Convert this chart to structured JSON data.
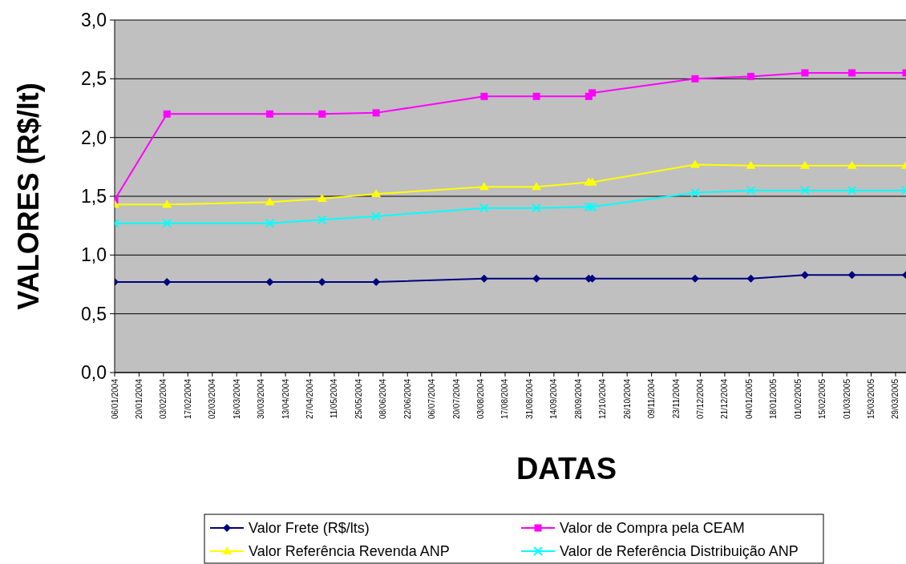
{
  "chart_data": {
    "type": "line",
    "xlabel": "DATAS",
    "ylabel": "VALORES (R$/lt)",
    "xlim": [
      "2004-01-06",
      "2005-04-04"
    ],
    "xticks": [
      {
        "value": "2004-01-06",
        "label": "06/01/2004"
      },
      {
        "value": "2004-01-20",
        "label": "20/01/2004"
      },
      {
        "value": "2004-02-03",
        "label": "03/02/2004"
      },
      {
        "value": "2004-02-17",
        "label": "17/02/2004"
      },
      {
        "value": "2004-03-02",
        "label": "02/03/2004"
      },
      {
        "value": "2004-03-16",
        "label": "16/03/2004"
      },
      {
        "value": "2004-03-30",
        "label": "30/03/2004"
      },
      {
        "value": "2004-04-13",
        "label": "13/04/2004"
      },
      {
        "value": "2004-04-27",
        "label": "27/04/2004"
      },
      {
        "value": "2004-05-11",
        "label": "11/05/2004"
      },
      {
        "value": "2004-05-25",
        "label": "25/05/2004"
      },
      {
        "value": "2004-06-08",
        "label": "08/06/2004"
      },
      {
        "value": "2004-06-22",
        "label": "22/06/2004"
      },
      {
        "value": "2004-07-06",
        "label": "06/07/2004"
      },
      {
        "value": "2004-07-20",
        "label": "20/07/2004"
      },
      {
        "value": "2004-08-03",
        "label": "03/08/2004"
      },
      {
        "value": "2004-08-17",
        "label": "17/08/2004"
      },
      {
        "value": "2004-08-31",
        "label": "31/08/2004"
      },
      {
        "value": "2004-09-14",
        "label": "14/09/2004"
      },
      {
        "value": "2004-09-28",
        "label": "28/09/2004"
      },
      {
        "value": "2004-10-12",
        "label": "12/10/2004"
      },
      {
        "value": "2004-10-26",
        "label": "26/10/2004"
      },
      {
        "value": "2004-11-09",
        "label": "09/11/2004"
      },
      {
        "value": "2004-11-23",
        "label": "23/11/2004"
      },
      {
        "value": "2004-12-07",
        "label": "07/12/2004"
      },
      {
        "value": "2004-12-21",
        "label": "21/12/2004"
      },
      {
        "value": "2005-01-04",
        "label": "04/01/2005"
      },
      {
        "value": "2005-01-18",
        "label": "18/01/2005"
      },
      {
        "value": "2005-02-01",
        "label": "01/02/2005"
      },
      {
        "value": "2005-02-15",
        "label": "15/02/2005"
      },
      {
        "value": "2005-03-01",
        "label": "01/03/2005"
      },
      {
        "value": "2005-03-15",
        "label": "15/03/2005"
      },
      {
        "value": "2005-03-29",
        "label": "29/03/2005"
      }
    ],
    "ylim": [
      0,
      3
    ],
    "yticks": [
      {
        "value": 0,
        "label": "0,0"
      },
      {
        "value": 0.5,
        "label": "0,5"
      },
      {
        "value": 1,
        "label": "1,0"
      },
      {
        "value": 1.5,
        "label": "1,5"
      },
      {
        "value": 2,
        "label": "2,0"
      },
      {
        "value": 2.5,
        "label": "2,5"
      },
      {
        "value": 3,
        "label": "3,0"
      }
    ],
    "grid": "y",
    "legend": "bottom",
    "x": [
      "2004-01-06",
      "2004-02-05",
      "2004-04-04",
      "2004-05-04",
      "2004-06-04",
      "2004-08-05",
      "2004-09-04",
      "2004-10-04",
      "2004-10-06",
      "2004-12-04",
      "2005-01-05",
      "2005-02-05",
      "2005-03-04",
      "2005-04-04"
    ],
    "series": [
      {
        "name": "Valor Frete (R$/lts)",
        "color": "#000080",
        "marker": "diamond",
        "values": [
          0.77,
          0.77,
          0.77,
          0.77,
          0.77,
          0.8,
          0.8,
          0.8,
          0.8,
          0.8,
          0.8,
          0.83,
          0.83,
          0.83
        ]
      },
      {
        "name": "Valor de Compra pela CEAM",
        "color": "#ff00ff",
        "marker": "square",
        "values": [
          1.47,
          2.2,
          2.2,
          2.2,
          2.21,
          2.35,
          2.35,
          2.35,
          2.38,
          2.5,
          2.52,
          2.55,
          2.55,
          2.55
        ]
      },
      {
        "name": "Valor Referência Revenda ANP",
        "color": "#ffff00",
        "marker": "triangle",
        "values": [
          1.43,
          1.43,
          1.45,
          1.48,
          1.52,
          1.58,
          1.58,
          1.62,
          1.62,
          1.77,
          1.76,
          1.76,
          1.76,
          1.76
        ]
      },
      {
        "name": "Valor de Referência Distribuição ANP",
        "color": "#00ffff",
        "marker": "cross",
        "values": [
          1.27,
          1.27,
          1.27,
          1.3,
          1.33,
          1.4,
          1.4,
          1.41,
          1.41,
          1.53,
          1.55,
          1.55,
          1.55,
          1.55
        ]
      }
    ]
  }
}
